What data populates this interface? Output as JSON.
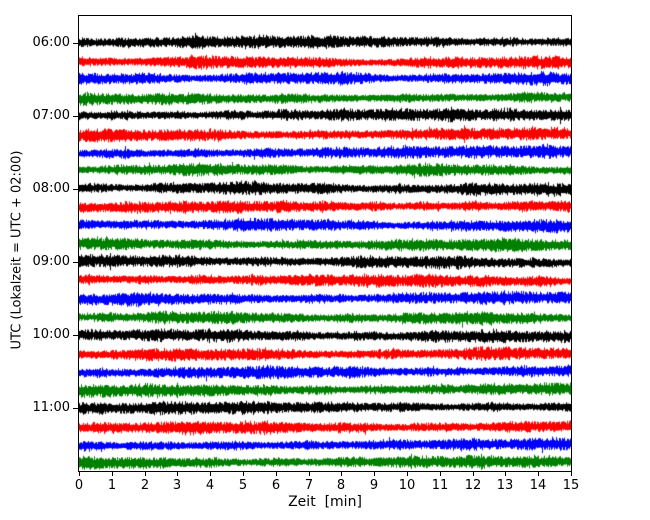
{
  "figure": {
    "background": "#ffffff"
  },
  "chart_data": {
    "type": "line",
    "subtype": "seismic-helicorder-dayplot",
    "title": "",
    "xlabel": "Zeit  [min]",
    "ylabel": "UTC (Lokalzeit = UTC + 02:00)",
    "xlim": [
      0,
      15
    ],
    "minutes_per_row": 15,
    "x_ticks": [
      "0",
      "1",
      "2",
      "3",
      "4",
      "5",
      "6",
      "7",
      "8",
      "9",
      "10",
      "11",
      "12",
      "13",
      "14",
      "15"
    ],
    "y_tick_labels": [
      "06:00",
      "07:00",
      "08:00",
      "09:00",
      "10:00",
      "11:00"
    ],
    "grid": false,
    "legend": false,
    "trace_color_cycle": [
      "#000000",
      "#ff0000",
      "#0000ff",
      "#008000"
    ],
    "content_note": "continuous band-limited seismic background noise traces; no distinct events",
    "rows": [
      {
        "start_utc": "06:00",
        "color": "#000000"
      },
      {
        "start_utc": "06:15",
        "color": "#ff0000"
      },
      {
        "start_utc": "06:30",
        "color": "#0000ff"
      },
      {
        "start_utc": "06:45",
        "color": "#008000"
      },
      {
        "start_utc": "07:00",
        "color": "#000000"
      },
      {
        "start_utc": "07:15",
        "color": "#ff0000"
      },
      {
        "start_utc": "07:30",
        "color": "#0000ff"
      },
      {
        "start_utc": "07:45",
        "color": "#008000"
      },
      {
        "start_utc": "08:00",
        "color": "#000000"
      },
      {
        "start_utc": "08:15",
        "color": "#ff0000"
      },
      {
        "start_utc": "08:30",
        "color": "#0000ff"
      },
      {
        "start_utc": "08:45",
        "color": "#008000"
      },
      {
        "start_utc": "09:00",
        "color": "#000000"
      },
      {
        "start_utc": "09:15",
        "color": "#ff0000"
      },
      {
        "start_utc": "09:30",
        "color": "#0000ff"
      },
      {
        "start_utc": "09:45",
        "color": "#008000"
      },
      {
        "start_utc": "10:00",
        "color": "#000000"
      },
      {
        "start_utc": "10:15",
        "color": "#ff0000"
      },
      {
        "start_utc": "10:30",
        "color": "#0000ff"
      },
      {
        "start_utc": "10:45",
        "color": "#008000"
      },
      {
        "start_utc": "11:00",
        "color": "#000000"
      },
      {
        "start_utc": "11:15",
        "color": "#ff0000"
      },
      {
        "start_utc": "11:30",
        "color": "#0000ff"
      },
      {
        "start_utc": "11:45",
        "color": "#008000"
      }
    ]
  }
}
